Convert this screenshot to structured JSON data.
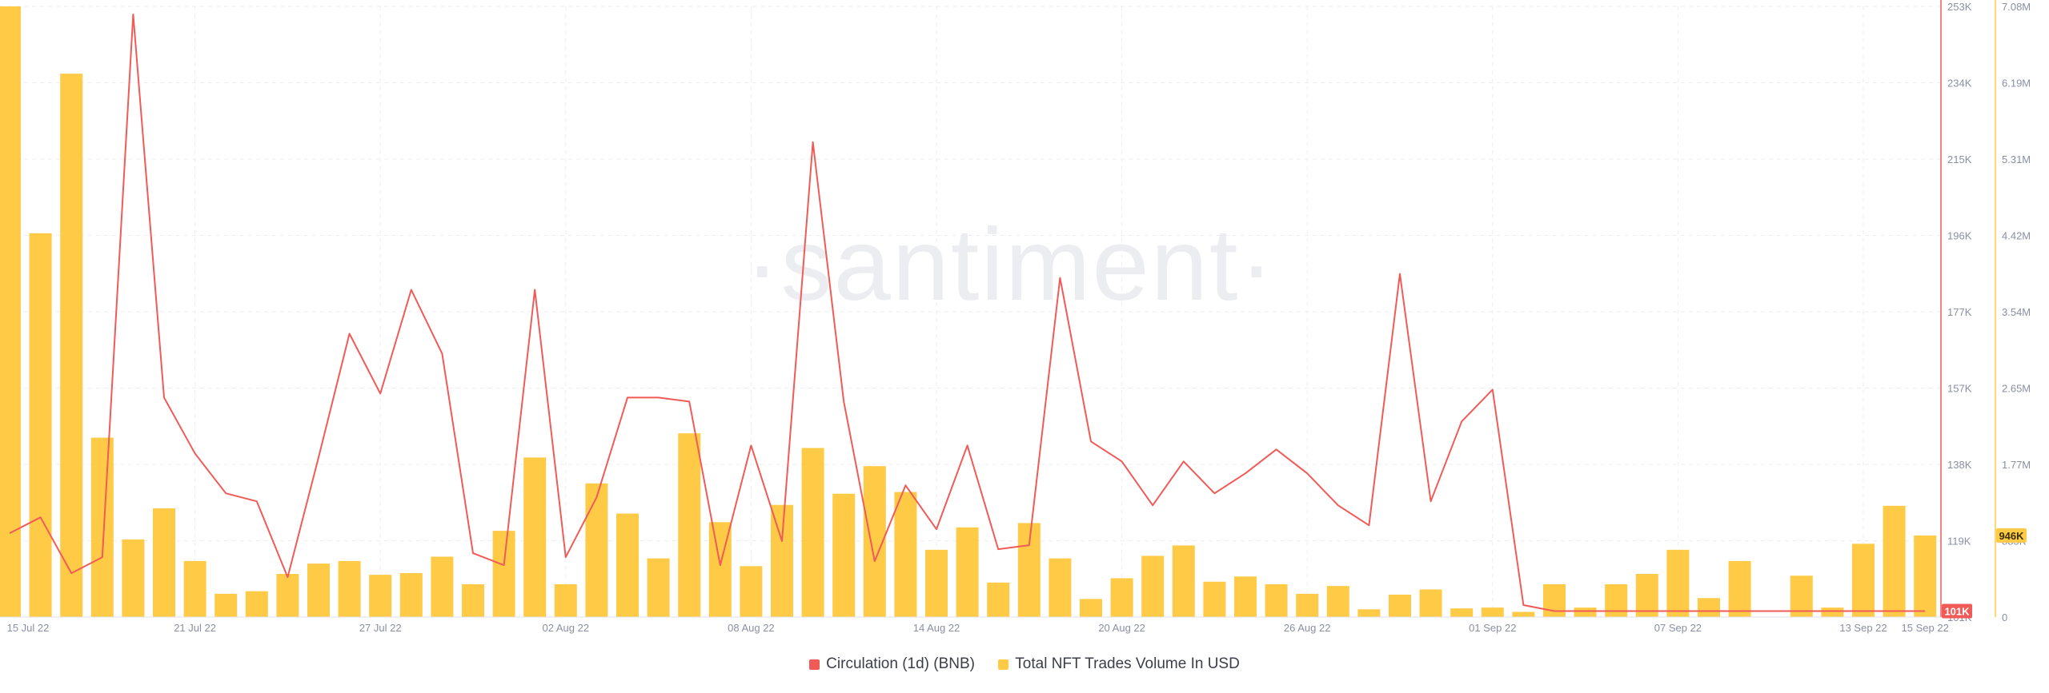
{
  "watermark": "·santiment·",
  "chart_data": {
    "type": "bar+line",
    "x": [
      "15 Jul 22",
      "16 Jul 22",
      "17 Jul 22",
      "18 Jul 22",
      "19 Jul 22",
      "20 Jul 22",
      "21 Jul 22",
      "22 Jul 22",
      "23 Jul 22",
      "24 Jul 22",
      "25 Jul 22",
      "26 Jul 22",
      "27 Jul 22",
      "28 Jul 22",
      "29 Jul 22",
      "30 Jul 22",
      "31 Jul 22",
      "01 Aug 22",
      "02 Aug 22",
      "03 Aug 22",
      "04 Aug 22",
      "05 Aug 22",
      "06 Aug 22",
      "07 Aug 22",
      "08 Aug 22",
      "09 Aug 22",
      "10 Aug 22",
      "11 Aug 22",
      "12 Aug 22",
      "13 Aug 22",
      "14 Aug 22",
      "15 Aug 22",
      "16 Aug 22",
      "17 Aug 22",
      "18 Aug 22",
      "19 Aug 22",
      "20 Aug 22",
      "21 Aug 22",
      "22 Aug 22",
      "23 Aug 22",
      "24 Aug 22",
      "25 Aug 22",
      "26 Aug 22",
      "27 Aug 22",
      "28 Aug 22",
      "29 Aug 22",
      "30 Aug 22",
      "31 Aug 22",
      "01 Sep 22",
      "02 Sep 22",
      "03 Sep 22",
      "04 Sep 22",
      "05 Sep 22",
      "06 Sep 22",
      "07 Sep 22",
      "08 Sep 22",
      "09 Sep 22",
      "10 Sep 22",
      "11 Sep 22",
      "12 Sep 22",
      "13 Sep 22",
      "14 Sep 22",
      "15 Sep 22"
    ],
    "x_tick_labels": [
      "15 Jul 22",
      "21 Jul 22",
      "27 Jul 22",
      "02 Aug 22",
      "08 Aug 22",
      "14 Aug 22",
      "20 Aug 22",
      "26 Aug 22",
      "01 Sep 22",
      "07 Sep 22",
      "13 Sep 22",
      "15 Sep 22"
    ],
    "series": [
      {
        "name": "Circulation (1d) (BNB)",
        "type": "line",
        "axis": "left",
        "color": "#f05b58",
        "values": [
          121000,
          125000,
          111000,
          115000,
          251000,
          155000,
          141000,
          131000,
          129000,
          110000,
          140000,
          171000,
          156000,
          182000,
          166000,
          116000,
          113000,
          182000,
          115000,
          130000,
          155000,
          155000,
          154000,
          113000,
          143000,
          119000,
          219000,
          154000,
          114000,
          133000,
          122000,
          143000,
          117000,
          118000,
          185000,
          144000,
          139000,
          128000,
          139000,
          131000,
          136000,
          142000,
          136000,
          128000,
          123000,
          186000,
          129000,
          149000,
          157000,
          103000,
          101500,
          101500,
          101500,
          101500,
          101500,
          101500,
          101500,
          101500,
          101500,
          101500,
          101500,
          101500,
          101500
        ]
      },
      {
        "name": "Total NFT Trades Volume In USD",
        "type": "bar",
        "axis": "right",
        "color": "#ffcb47",
        "values": [
          7080000,
          4450000,
          6300000,
          2080000,
          900000,
          1260000,
          650000,
          270000,
          300000,
          500000,
          620000,
          650000,
          490000,
          510000,
          700000,
          380000,
          1000000,
          1850000,
          380000,
          1550000,
          1200000,
          680000,
          2130000,
          1100000,
          590000,
          1300000,
          1960000,
          1430000,
          1750000,
          1450000,
          780000,
          1040000,
          400000,
          1090000,
          680000,
          210000,
          450000,
          710000,
          830000,
          410000,
          470000,
          380000,
          270000,
          360000,
          90000,
          260000,
          320000,
          100000,
          110000,
          60000,
          380000,
          110000,
          380000,
          500000,
          780000,
          220000,
          650000,
          0,
          480000,
          110000,
          850000,
          1290000,
          946000
        ]
      }
    ],
    "left_axis": {
      "ticks": [
        "101K",
        "119K",
        "138K",
        "157K",
        "177K",
        "196K",
        "215K",
        "234K",
        "253K"
      ],
      "ylim": [
        100000,
        253000
      ]
    },
    "right_axis": {
      "ticks": [
        "0",
        "885K",
        "1.77M",
        "2.65M",
        "3.54M",
        "4.42M",
        "5.31M",
        "6.19M",
        "7.08M"
      ],
      "ylim": [
        0,
        7080000
      ]
    },
    "value_badges": {
      "left": "101K",
      "right": "946K"
    },
    "grid": true,
    "legend_position": "bottom-center"
  }
}
